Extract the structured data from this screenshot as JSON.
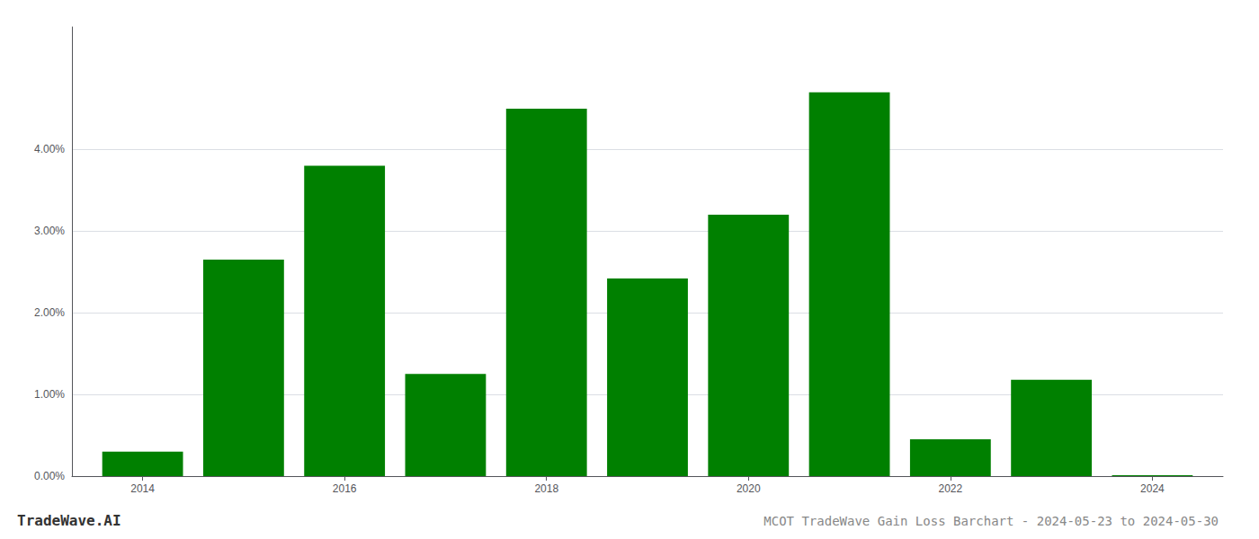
{
  "chart_data": {
    "type": "bar",
    "title": "MCOT TradeWave Gain Loss Barchart - 2024-05-23 to 2024-05-30",
    "annotations": [
      "TradeWave.AI"
    ],
    "x": [
      2014,
      2015,
      2016,
      2017,
      2018,
      2019,
      2020,
      2021,
      2022,
      2023,
      2024
    ],
    "values": [
      0.003,
      0.0265,
      0.038,
      0.0125,
      0.045,
      0.0242,
      0.032,
      0.047,
      0.0045,
      0.0118,
      0.0001
    ],
    "color": "#008000",
    "xlim": [
      2013.3,
      2024.7
    ],
    "xticks": [
      2014,
      2016,
      2018,
      2020,
      2022,
      2024
    ],
    "ylim": [
      0,
      0.055
    ],
    "yticks": [
      {
        "value": 0.0,
        "label": "0.00%"
      },
      {
        "value": 0.01,
        "label": "1.00%"
      },
      {
        "value": 0.02,
        "label": "2.00%"
      },
      {
        "value": 0.03,
        "label": "3.00%"
      },
      {
        "value": 0.04,
        "label": "4.00%"
      }
    ],
    "grid": true
  }
}
